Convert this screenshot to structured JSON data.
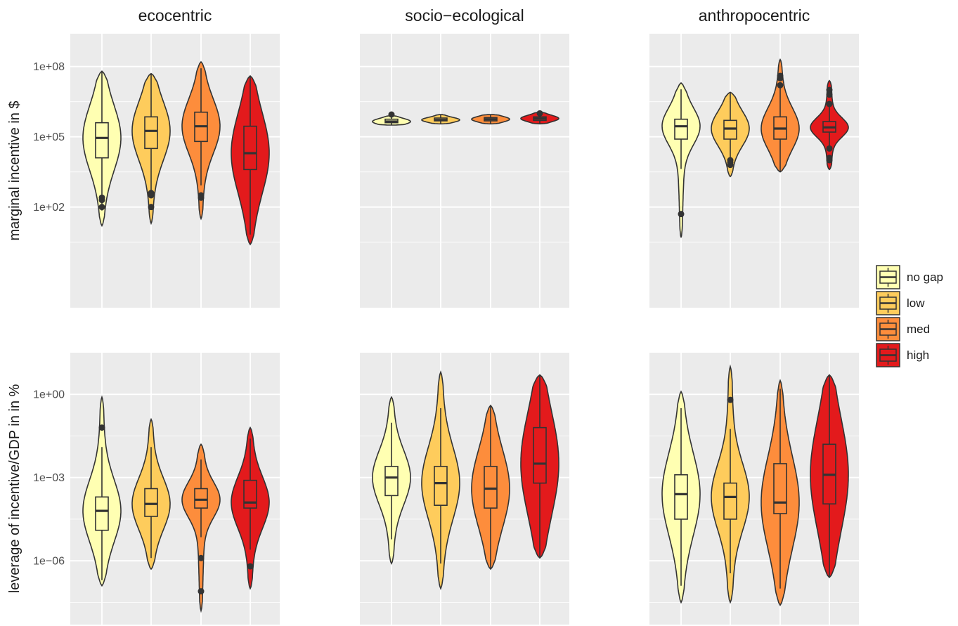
{
  "chart_data": {
    "type": "violin",
    "facet_columns": [
      "ecocentric",
      "socio−ecological",
      "anthropocentric"
    ],
    "y_scale": "log10",
    "legend": {
      "position": "right",
      "entries": [
        {
          "label": "no gap",
          "color": "#FFFFB2"
        },
        {
          "label": "low",
          "color": "#FECC5C"
        },
        {
          "label": "med",
          "color": "#FD8D3C"
        },
        {
          "label": "high",
          "color": "#E31A1C"
        }
      ]
    },
    "theme": {
      "panel_bg": "#EBEBEB",
      "grid": "#FFFFFF",
      "outline": "#333333"
    },
    "rows": [
      {
        "ylabel": "marginal incentive in $",
        "ylim_log10": [
          -2.3,
          9.4
        ],
        "ticks": [
          {
            "log": 2,
            "label": "1e+02"
          },
          {
            "log": 5,
            "label": "1e+05"
          },
          {
            "log": 8,
            "label": "1e+08"
          }
        ],
        "panels": [
          {
            "column": "ecocentric",
            "groups": [
              {
                "label": "no gap",
                "min": 1.2,
                "max": 7.8,
                "q1": 4.1,
                "median": 4.95,
                "q3": 5.6,
                "outliers": [
                  2.0,
                  2.3,
                  2.4
                ]
              },
              {
                "label": "low",
                "min": 1.3,
                "max": 7.7,
                "q1": 4.5,
                "median": 5.25,
                "q3": 5.85,
                "outliers": [
                  2.0,
                  2.5,
                  2.6
                ]
              },
              {
                "label": "med",
                "min": 1.5,
                "max": 8.2,
                "q1": 4.8,
                "median": 5.45,
                "q3": 6.05,
                "outliers": [
                  2.4,
                  2.5
                ]
              },
              {
                "label": "high",
                "min": 0.4,
                "max": 7.6,
                "q1": 3.6,
                "median": 4.3,
                "q3": 5.45,
                "outliers": []
              }
            ]
          },
          {
            "column": "socio−ecological",
            "groups": [
              {
                "label": "no gap",
                "min": 5.5,
                "max": 5.9,
                "q1": 5.6,
                "median": 5.65,
                "q3": 5.75,
                "outliers": [
                  5.95
                ]
              },
              {
                "label": "low",
                "min": 5.55,
                "max": 5.95,
                "q1": 5.68,
                "median": 5.72,
                "q3": 5.8,
                "outliers": []
              },
              {
                "label": "med",
                "min": 5.55,
                "max": 5.95,
                "q1": 5.68,
                "median": 5.75,
                "q3": 5.82,
                "outliers": []
              },
              {
                "label": "high",
                "min": 5.55,
                "max": 6.05,
                "q1": 5.7,
                "median": 5.78,
                "q3": 5.85,
                "outliers": [
                  6.0
                ]
              }
            ]
          },
          {
            "column": "anthropocentric",
            "groups": [
              {
                "label": "no gap",
                "min": 0.7,
                "max": 7.3,
                "q1": 4.9,
                "median": 5.45,
                "q3": 5.75,
                "outliers": [
                  1.7
                ]
              },
              {
                "label": "low",
                "min": 3.3,
                "max": 6.9,
                "q1": 4.9,
                "median": 5.35,
                "q3": 5.7,
                "outliers": [
                  3.8,
                  3.9,
                  4.0
                ]
              },
              {
                "label": "med",
                "min": 3.5,
                "max": 8.3,
                "q1": 4.9,
                "median": 5.35,
                "q3": 5.85,
                "outliers": [
                  7.2,
                  7.5,
                  7.6
                ]
              },
              {
                "label": "high",
                "min": 3.6,
                "max": 7.4,
                "q1": 5.2,
                "median": 5.4,
                "q3": 5.65,
                "outliers": [
                  4.0,
                  4.1,
                  4.5,
                  6.4,
                  6.8,
                  7.0
                ]
              }
            ]
          }
        ]
      },
      {
        "ylabel": "leverage of incentive/GDP in in %",
        "ylim_log10": [
          -8.3,
          1.5
        ],
        "ticks": [
          {
            "log": -6,
            "label": "1e−06"
          },
          {
            "log": -3,
            "label": "1e−03"
          },
          {
            "log": 0,
            "label": "1e+00"
          }
        ],
        "panels": [
          {
            "column": "ecocentric",
            "groups": [
              {
                "label": "no gap",
                "min": -6.9,
                "max": -0.1,
                "q1": -4.9,
                "median": -4.2,
                "q3": -3.7,
                "outliers": [
                  -1.2
                ]
              },
              {
                "label": "low",
                "min": -6.3,
                "max": -0.9,
                "q1": -4.4,
                "median": -3.95,
                "q3": -3.4,
                "outliers": []
              },
              {
                "label": "med",
                "min": -7.8,
                "max": -1.8,
                "q1": -4.1,
                "median": -3.8,
                "q3": -3.4,
                "outliers": [
                  -5.9,
                  -7.1
                ]
              },
              {
                "label": "high",
                "min": -7.0,
                "max": -1.2,
                "q1": -4.1,
                "median": -3.9,
                "q3": -3.1,
                "outliers": [
                  -6.2
                ]
              }
            ]
          },
          {
            "column": "socio−ecological",
            "groups": [
              {
                "label": "no gap",
                "min": -6.1,
                "max": -0.1,
                "q1": -3.65,
                "median": -3.0,
                "q3": -2.6,
                "outliers": []
              },
              {
                "label": "low",
                "min": -7.0,
                "max": 0.8,
                "q1": -4.0,
                "median": -3.2,
                "q3": -2.6,
                "outliers": []
              },
              {
                "label": "med",
                "min": -6.3,
                "max": -0.4,
                "q1": -4.1,
                "median": -3.4,
                "q3": -2.6,
                "outliers": []
              },
              {
                "label": "high",
                "min": -5.9,
                "max": 0.7,
                "q1": -3.2,
                "median": -2.5,
                "q3": -1.2,
                "outliers": []
              }
            ]
          },
          {
            "column": "anthropocentric",
            "groups": [
              {
                "label": "no gap",
                "min": -7.5,
                "max": 0.1,
                "q1": -4.5,
                "median": -3.6,
                "q3": -2.9,
                "outliers": []
              },
              {
                "label": "low",
                "min": -7.5,
                "max": 1.0,
                "q1": -4.5,
                "median": -3.7,
                "q3": -3.2,
                "outliers": [
                  -0.2
                ]
              },
              {
                "label": "med",
                "min": -7.6,
                "max": 0.5,
                "q1": -4.3,
                "median": -3.9,
                "q3": -2.5,
                "outliers": []
              },
              {
                "label": "high",
                "min": -6.6,
                "max": 0.7,
                "q1": -3.95,
                "median": -2.9,
                "q3": -1.8,
                "outliers": []
              }
            ]
          }
        ]
      }
    ]
  }
}
